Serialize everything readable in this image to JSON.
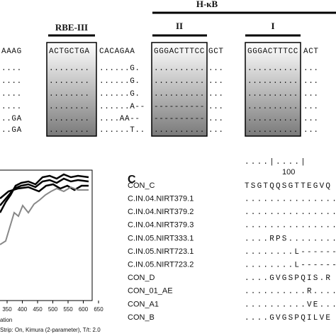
{
  "top": {
    "hkb_label": "H-κB",
    "rbe_label": "RBE-III",
    "site2_label": "II",
    "site1_label": "I",
    "rows": [
      [
        "AAAG",
        "ACTGCTGA",
        "CACAGAA",
        "GGGACTTTCC",
        "GCT",
        "GGGACTTTCC",
        "ACT"
      ],
      [
        "....",
        "........",
        "......G.",
        "..........",
        "...",
        "..........",
        "..."
      ],
      [
        "....",
        "........",
        "......G.",
        "..........",
        "...",
        "..........",
        "..."
      ],
      [
        "....",
        "........",
        "......G.",
        "..........",
        "...",
        "..........",
        "..."
      ],
      [
        "....",
        "........",
        "......A--",
        "----------",
        "...",
        "..........",
        "..."
      ],
      [
        "..GA",
        "........",
        "....AA--",
        "----------",
        "...",
        "..........",
        "..."
      ],
      [
        "..GA",
        "........",
        "......T..",
        "..........",
        "...",
        "..........",
        "..."
      ]
    ]
  },
  "tree_panel": {
    "x_ticks": [
      350,
      400,
      450,
      500,
      550,
      600,
      650
    ],
    "x_label": "ation",
    "caption": "Strip: On, Kimura (2-parameter), T/t: 2.0"
  },
  "panel_c": {
    "label": "C",
    "ruler": "....|....|",
    "position": "100",
    "rows": [
      {
        "name": "CON_C",
        "seq": "TSGTQQSGTTEGVQ"
      },
      {
        "name": "C.IN.04.NIRT379.1",
        "seq": "...............I"
      },
      {
        "name": "C.IN.04.NIRT379.2",
        "seq": "...............I"
      },
      {
        "name": "C.IN.04.NIRT379.3",
        "seq": "...............I"
      },
      {
        "name": "C.IN.05.NIRT333.1",
        "seq": "....RPS.........I"
      },
      {
        "name": "C.IN.05.NIRT723.1",
        "seq": "........L-------I"
      },
      {
        "name": "C.IN.05.NIRT723.2",
        "seq": "........L-------I"
      },
      {
        "name": "CON_D",
        "seq": "....GVGSPQIS.R"
      },
      {
        "name": "CON_01_AE",
        "seq": "..........R....."
      },
      {
        "name": "CON_A1",
        "seq": "..........VE...."
      },
      {
        "name": "CON_B",
        "seq": "....GVGSPQILVE"
      }
    ]
  }
}
